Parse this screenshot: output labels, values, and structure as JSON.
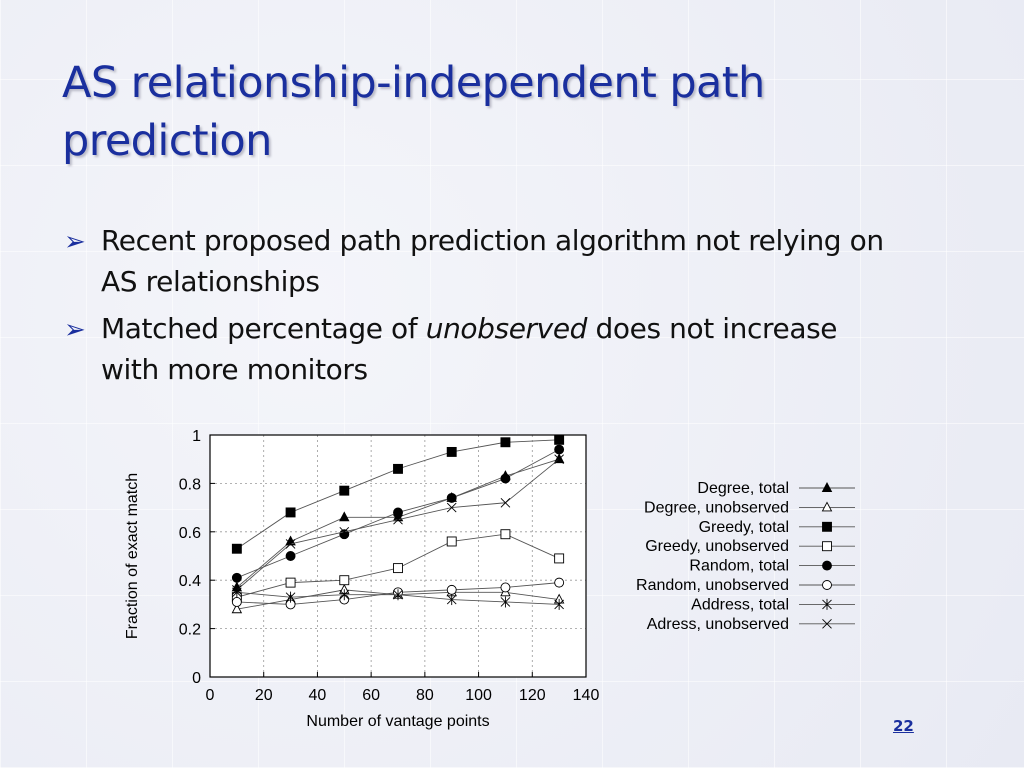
{
  "slide": {
    "title_line1": "AS relationship-independent path",
    "title_line2": "prediction",
    "bullet1_line1": "Recent proposed path prediction algorithm not relying on",
    "bullet1_line2": "AS relationships",
    "bullet2_before": "Matched percentage of ",
    "bullet2_em": "unobserved",
    "bullet2_after": " does not increase",
    "bullet2_line2": "with more monitors",
    "page_number": "22"
  },
  "chart_data": {
    "type": "line",
    "xlabel": "Number of vantage points",
    "ylabel": "Fraction of exact match",
    "xlim": [
      0,
      140
    ],
    "ylim": [
      0,
      1
    ],
    "xticks": [
      "0",
      "20",
      "40",
      "60",
      "80",
      "100",
      "120",
      "140"
    ],
    "yticks": [
      "0",
      "0.2",
      "0.4",
      "0.6",
      "0.8",
      "1"
    ],
    "grid": true,
    "legend_placement": "right",
    "x": [
      10,
      30,
      50,
      70,
      90,
      110,
      130
    ],
    "series": [
      {
        "name": "Degree, total",
        "marker": "triangle-filled",
        "values": [
          0.37,
          0.56,
          0.66,
          0.66,
          0.74,
          0.83,
          0.9
        ]
      },
      {
        "name": "Degree, unobserved",
        "marker": "triangle-open",
        "values": [
          0.28,
          0.32,
          0.36,
          0.34,
          0.35,
          0.35,
          0.32
        ]
      },
      {
        "name": "Greedy, total",
        "marker": "square-filled",
        "values": [
          0.53,
          0.68,
          0.77,
          0.86,
          0.93,
          0.97,
          0.98
        ]
      },
      {
        "name": "Greedy, unobserved",
        "marker": "square-open",
        "values": [
          0.33,
          0.39,
          0.4,
          0.45,
          0.56,
          0.59,
          0.49
        ]
      },
      {
        "name": "Random, total",
        "marker": "circle-filled",
        "values": [
          0.41,
          0.5,
          0.59,
          0.68,
          0.74,
          0.82,
          0.94
        ]
      },
      {
        "name": "Random, unobserved",
        "marker": "circle-open",
        "values": [
          0.31,
          0.3,
          0.32,
          0.35,
          0.36,
          0.37,
          0.39
        ]
      },
      {
        "name": "Address, total",
        "marker": "asterisk",
        "values": [
          0.35,
          0.33,
          0.34,
          0.34,
          0.32,
          0.31,
          0.3
        ]
      },
      {
        "name": "Adress, unobserved",
        "marker": "cross",
        "values": [
          0.36,
          0.55,
          0.6,
          0.65,
          0.7,
          0.72,
          0.9
        ]
      }
    ]
  }
}
